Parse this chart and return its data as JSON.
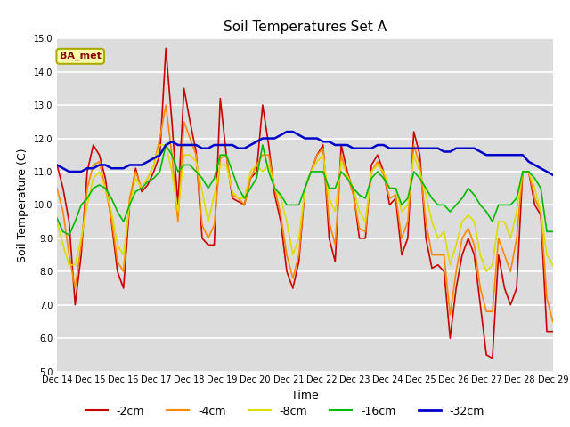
{
  "title": "Soil Temperatures Set A",
  "xlabel": "Time",
  "ylabel": "Soil Temperature (C)",
  "ylim": [
    5.0,
    15.0
  ],
  "yticks": [
    5.0,
    6.0,
    7.0,
    8.0,
    9.0,
    10.0,
    11.0,
    12.0,
    13.0,
    14.0,
    15.0
  ],
  "xtick_labels": [
    "Dec 14",
    "Dec 15",
    "Dec 16",
    "Dec 17",
    "Dec 18",
    "Dec 19",
    "Dec 20",
    "Dec 21",
    "Dec 22",
    "Dec 23",
    "Dec 24",
    "Dec 25",
    "Dec 26",
    "Dec 27",
    "Dec 28",
    "Dec 29"
  ],
  "plot_bg_color": "#dcdcdc",
  "fig_bg_color": "#ffffff",
  "legend_label": "BA_met",
  "legend_label_color": "#8b0000",
  "legend_box_facecolor": "#ffffaa",
  "legend_box_edgecolor": "#aaaa00",
  "grid_color": "#ffffff",
  "title_fontsize": 11,
  "axis_fontsize": 9,
  "tick_fontsize": 7,
  "series": {
    "-2cm": {
      "color": "#cc0000",
      "lw": 1.2,
      "data": [
        11.2,
        10.5,
        9.5,
        7.0,
        8.5,
        11.0,
        11.8,
        11.5,
        10.8,
        9.5,
        8.0,
        7.5,
        10.0,
        11.1,
        10.4,
        10.6,
        11.0,
        11.5,
        14.7,
        12.5,
        10.0,
        13.5,
        12.5,
        11.6,
        9.0,
        8.8,
        8.8,
        13.2,
        11.5,
        10.2,
        10.1,
        10.0,
        10.8,
        11.0,
        13.0,
        11.8,
        10.3,
        9.5,
        8.0,
        7.5,
        8.3,
        10.5,
        11.0,
        11.5,
        11.8,
        9.0,
        8.3,
        11.8,
        11.0,
        10.4,
        9.0,
        9.0,
        11.2,
        11.5,
        11.0,
        10.0,
        10.2,
        8.5,
        9.0,
        12.2,
        11.5,
        9.0,
        8.1,
        8.2,
        8.0,
        6.0,
        7.5,
        8.5,
        9.0,
        8.5,
        7.0,
        5.5,
        5.4,
        8.5,
        7.5,
        7.0,
        7.5,
        11.0,
        11.0,
        10.0,
        9.7,
        6.2,
        6.2
      ]
    },
    "-4cm": {
      "color": "#ff8800",
      "lw": 1.2,
      "data": [
        10.5,
        9.8,
        8.5,
        7.5,
        8.8,
        10.5,
        11.2,
        11.3,
        10.5,
        9.6,
        8.3,
        8.0,
        10.2,
        11.0,
        10.5,
        10.8,
        11.2,
        12.0,
        13.0,
        11.5,
        9.5,
        12.5,
        12.0,
        11.5,
        9.4,
        9.0,
        9.4,
        11.4,
        11.5,
        10.3,
        10.2,
        10.0,
        10.8,
        11.2,
        11.5,
        11.5,
        10.5,
        9.7,
        8.5,
        7.8,
        8.5,
        10.5,
        11.0,
        11.5,
        11.7,
        9.5,
        8.8,
        11.5,
        10.9,
        10.3,
        9.3,
        9.2,
        11.0,
        11.3,
        10.9,
        10.2,
        10.3,
        9.0,
        9.5,
        11.8,
        11.2,
        9.5,
        8.5,
        8.5,
        8.5,
        6.7,
        8.0,
        9.0,
        9.3,
        8.8,
        7.5,
        6.8,
        6.8,
        9.0,
        8.5,
        8.0,
        9.0,
        11.0,
        11.0,
        10.2,
        9.8,
        7.2,
        6.5
      ]
    },
    "-8cm": {
      "color": "#dddd00",
      "lw": 1.2,
      "data": [
        9.5,
        8.8,
        8.2,
        8.2,
        9.0,
        10.0,
        10.8,
        11.0,
        10.5,
        9.8,
        8.8,
        8.5,
        10.0,
        10.8,
        10.5,
        10.8,
        11.2,
        11.8,
        11.8,
        11.0,
        9.8,
        11.5,
        11.5,
        11.3,
        10.4,
        9.5,
        10.3,
        11.2,
        11.2,
        10.4,
        10.2,
        10.2,
        11.0,
        11.2,
        11.0,
        11.2,
        10.5,
        10.2,
        9.5,
        8.5,
        9.0,
        10.5,
        11.0,
        11.3,
        11.5,
        10.2,
        9.8,
        11.3,
        10.9,
        10.5,
        9.8,
        9.5,
        11.0,
        11.2,
        11.0,
        10.5,
        10.5,
        9.8,
        10.0,
        11.5,
        11.0,
        10.3,
        9.5,
        9.0,
        9.2,
        8.2,
        8.8,
        9.5,
        9.7,
        9.5,
        8.5,
        8.0,
        8.2,
        9.5,
        9.5,
        9.0,
        9.8,
        11.0,
        11.0,
        10.5,
        9.8,
        8.5,
        8.2
      ]
    },
    "-16cm": {
      "color": "#00bb00",
      "lw": 1.2,
      "data": [
        9.6,
        9.2,
        9.1,
        9.5,
        10.0,
        10.2,
        10.5,
        10.6,
        10.5,
        10.2,
        9.8,
        9.5,
        10.0,
        10.4,
        10.5,
        10.7,
        10.8,
        11.0,
        11.8,
        11.5,
        11.0,
        11.2,
        11.2,
        11.0,
        10.8,
        10.5,
        10.8,
        11.5,
        11.5,
        11.0,
        10.5,
        10.2,
        10.5,
        10.8,
        11.8,
        11.0,
        10.5,
        10.3,
        10.0,
        10.0,
        10.0,
        10.5,
        11.0,
        11.0,
        11.0,
        10.5,
        10.5,
        11.0,
        10.8,
        10.5,
        10.3,
        10.2,
        10.8,
        11.0,
        10.8,
        10.5,
        10.5,
        10.0,
        10.2,
        11.0,
        10.8,
        10.5,
        10.2,
        10.0,
        10.0,
        9.8,
        10.0,
        10.2,
        10.5,
        10.3,
        10.0,
        9.8,
        9.5,
        10.0,
        10.0,
        10.0,
        10.2,
        11.0,
        11.0,
        10.8,
        10.5,
        9.2,
        9.2
      ]
    },
    "-32cm": {
      "color": "#0000cc",
      "lw": 1.8,
      "data": [
        11.2,
        11.1,
        11.0,
        11.0,
        11.0,
        11.1,
        11.1,
        11.2,
        11.2,
        11.1,
        11.1,
        11.1,
        11.2,
        11.2,
        11.2,
        11.3,
        11.4,
        11.5,
        11.8,
        11.9,
        11.8,
        11.8,
        11.8,
        11.8,
        11.7,
        11.7,
        11.8,
        11.8,
        11.8,
        11.8,
        11.7,
        11.7,
        11.8,
        11.9,
        12.0,
        12.0,
        12.0,
        12.1,
        12.2,
        12.2,
        12.1,
        12.0,
        12.0,
        12.0,
        11.9,
        11.9,
        11.8,
        11.8,
        11.8,
        11.7,
        11.7,
        11.7,
        11.7,
        11.8,
        11.8,
        11.7,
        11.7,
        11.7,
        11.7,
        11.7,
        11.7,
        11.7,
        11.7,
        11.7,
        11.6,
        11.6,
        11.7,
        11.7,
        11.7,
        11.7,
        11.6,
        11.5,
        11.5,
        11.5,
        11.5,
        11.5,
        11.5,
        11.5,
        11.3,
        11.2,
        11.1,
        11.0,
        10.9
      ]
    }
  }
}
